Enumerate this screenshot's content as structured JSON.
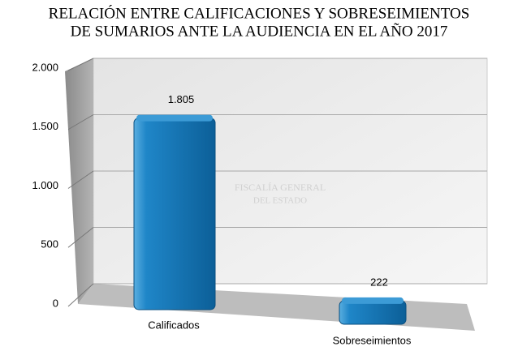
{
  "chart_data": {
    "type": "bar3d",
    "title": [
      "RELACIÓN ENTRE CALIFICACIONES Y SOBRESEIMIENTOS",
      "DE SUMARIOS ANTE LA AUDIENCIA EN EL AÑO 2017"
    ],
    "categories": [
      "Calificados",
      "Sobreseimientos"
    ],
    "values": [
      1805,
      222
    ],
    "value_labels": [
      "1.805",
      "222"
    ],
    "color": "#1a7cc0",
    "ylim": [
      0,
      2000
    ],
    "yticks": [
      0,
      500,
      {
        "value": 1000,
        "label": "1.000"
      },
      {
        "value": 1500,
        "label": "1.500"
      },
      {
        "value": 2000,
        "label": "2.000"
      }
    ],
    "grid": true,
    "watermark": [
      "FISCALÍA GENERAL",
      "DEL ESTADO"
    ]
  }
}
